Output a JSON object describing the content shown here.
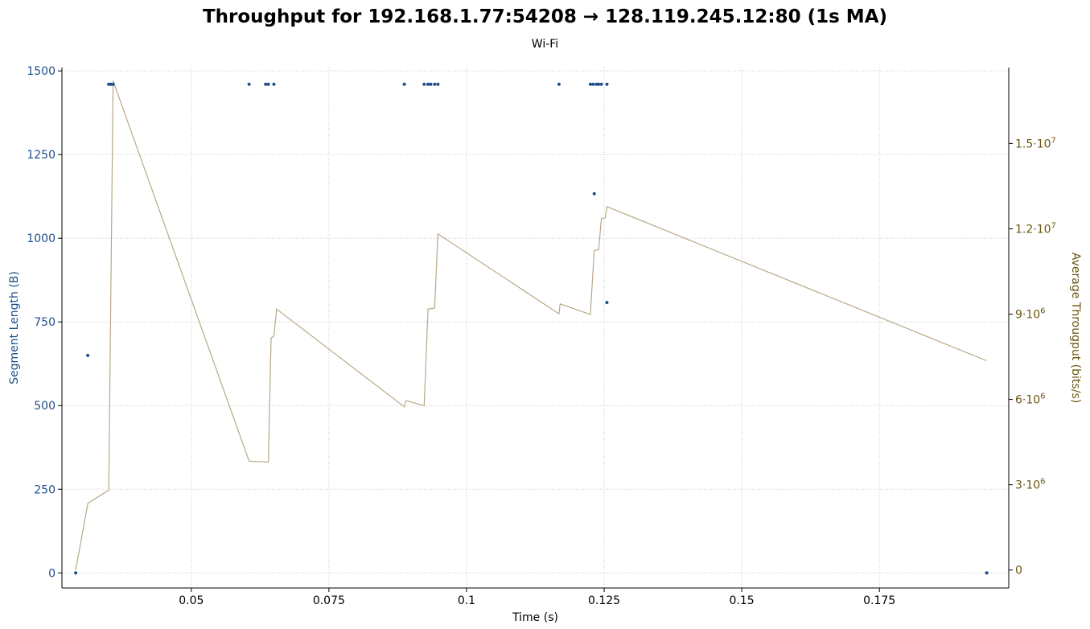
{
  "chart_data": {
    "type": "scatter+line",
    "title": "Throughput for 192.168.1.77:54208 → 128.119.245.12:80 (1s MA)",
    "subtitle": "Wi-Fi",
    "xlabel": "Time (s)",
    "ylabel_left": "Segment Length (B)",
    "ylabel_right": "Average Througput (bits/s)",
    "xlim": [
      0.0265,
      0.1985
    ],
    "ylim_left": [
      -45,
      1510
    ],
    "ylim_right": [
      -630000,
      17670000
    ],
    "x_ticks": [
      "0.05",
      "0.075",
      "0.1",
      "0.125",
      "0.15",
      "0.175"
    ],
    "x_tick_values": [
      0.05,
      0.075,
      0.1,
      0.125,
      0.15,
      0.175
    ],
    "y_left_ticks": [
      "0",
      "250",
      "500",
      "750",
      "1000",
      "1250",
      "1500"
    ],
    "y_left_tick_values": [
      0,
      250,
      500,
      750,
      1000,
      1250,
      1500
    ],
    "y_right_ticks": [
      {
        "mantissa": "0",
        "exp": "",
        "value": 0
      },
      {
        "mantissa": "3·10",
        "exp": "6",
        "value": 3000000
      },
      {
        "mantissa": "6·10",
        "exp": "6",
        "value": 6000000
      },
      {
        "mantissa": "9·10",
        "exp": "6",
        "value": 9000000
      },
      {
        "mantissa": "1.2·10",
        "exp": "7",
        "value": 12000000
      },
      {
        "mantissa": "1.5·10",
        "exp": "7",
        "value": 15000000
      }
    ],
    "grid": true,
    "series": [
      {
        "name": "Segment Length",
        "kind": "scatter",
        "axis": "left",
        "color": "#1f4e8c",
        "points": [
          [
            0.029,
            0
          ],
          [
            0.0312,
            650
          ],
          [
            0.035,
            1460
          ],
          [
            0.0354,
            1460
          ],
          [
            0.0358,
            1460
          ],
          [
            0.0605,
            1460
          ],
          [
            0.0635,
            1460
          ],
          [
            0.064,
            1460
          ],
          [
            0.065,
            1460
          ],
          [
            0.0887,
            1460
          ],
          [
            0.0923,
            1460
          ],
          [
            0.093,
            1460
          ],
          [
            0.0935,
            1460
          ],
          [
            0.0942,
            1460
          ],
          [
            0.0948,
            1460
          ],
          [
            0.1168,
            1460
          ],
          [
            0.1225,
            1460
          ],
          [
            0.123,
            1460
          ],
          [
            0.1236,
            1460
          ],
          [
            0.1232,
            1133
          ],
          [
            0.124,
            1460
          ],
          [
            0.1245,
            1460
          ],
          [
            0.1255,
            1460
          ],
          [
            0.1255,
            808
          ],
          [
            0.1945,
            0
          ]
        ]
      },
      {
        "name": "Average Throughput",
        "kind": "line",
        "axis": "right",
        "color": "#b8a888",
        "points": [
          [
            0.029,
            0
          ],
          [
            0.0312,
            2350000
          ],
          [
            0.035,
            2810000
          ],
          [
            0.0358,
            17200000
          ],
          [
            0.0605,
            3830000
          ],
          [
            0.064,
            3800000
          ],
          [
            0.0645,
            8160000
          ],
          [
            0.065,
            8230000
          ],
          [
            0.0655,
            9180000
          ],
          [
            0.0887,
            5740000
          ],
          [
            0.089,
            5960000
          ],
          [
            0.0923,
            5780000
          ],
          [
            0.093,
            9180000
          ],
          [
            0.0942,
            9210000
          ],
          [
            0.0948,
            11820000
          ],
          [
            0.1168,
            9010000
          ],
          [
            0.117,
            9360000
          ],
          [
            0.1225,
            8990000
          ],
          [
            0.1232,
            11240000
          ],
          [
            0.124,
            11260000
          ],
          [
            0.1245,
            12370000
          ],
          [
            0.1252,
            12380000
          ],
          [
            0.1255,
            12780000
          ],
          [
            0.1945,
            7360000
          ]
        ]
      }
    ]
  }
}
